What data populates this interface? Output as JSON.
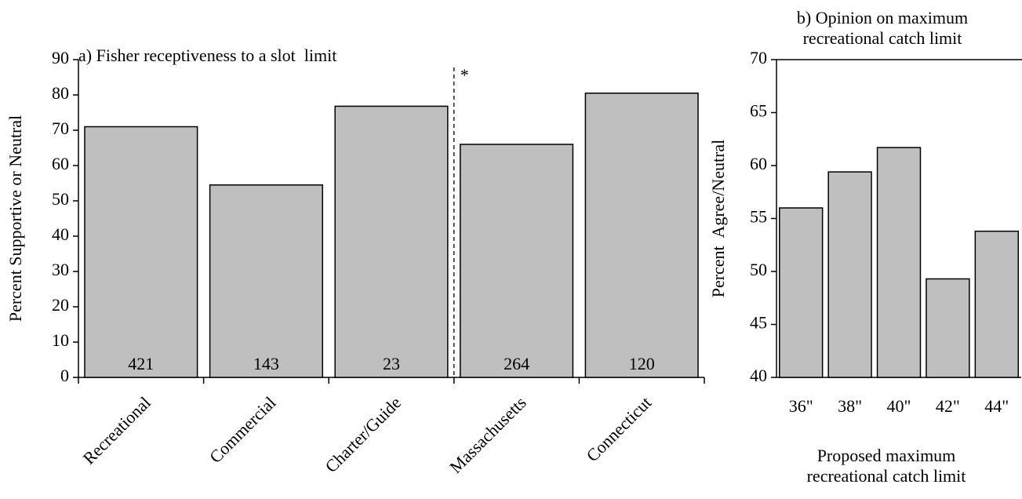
{
  "chart_data": [
    {
      "type": "bar",
      "title": "a) Fisher receptiveness to a slot  limit",
      "y_label": "Percent Supportive or Neutral",
      "categories": [
        "Recreational",
        "Commercial",
        "Charter/Guide",
        "Massachusetts",
        "Connecticut"
      ],
      "values": [
        71,
        54.5,
        76.8,
        66,
        80.5
      ],
      "sample_sizes": [
        421,
        143,
        23,
        264,
        120
      ],
      "annotation": "*",
      "color": "#bfbfbf",
      "ylim": [
        0,
        90
      ],
      "yticks": [
        0,
        10,
        20,
        30,
        40,
        50,
        60,
        70,
        80,
        90
      ]
    },
    {
      "type": "bar",
      "title": "b) Opinion on maximum recreational catch limit",
      "y_label": "Percent  Agree/Neutral",
      "x_label": "Proposed maximum recreational catch limit",
      "categories": [
        "36\"",
        "38\"",
        "40\"",
        "42\"",
        "44\""
      ],
      "values": [
        56,
        59.4,
        61.7,
        49.3,
        53.8
      ],
      "color": "#bfbfbf",
      "ylim": [
        40,
        70
      ],
      "yticks": [
        40,
        45,
        50,
        55,
        60,
        65,
        70
      ]
    }
  ]
}
